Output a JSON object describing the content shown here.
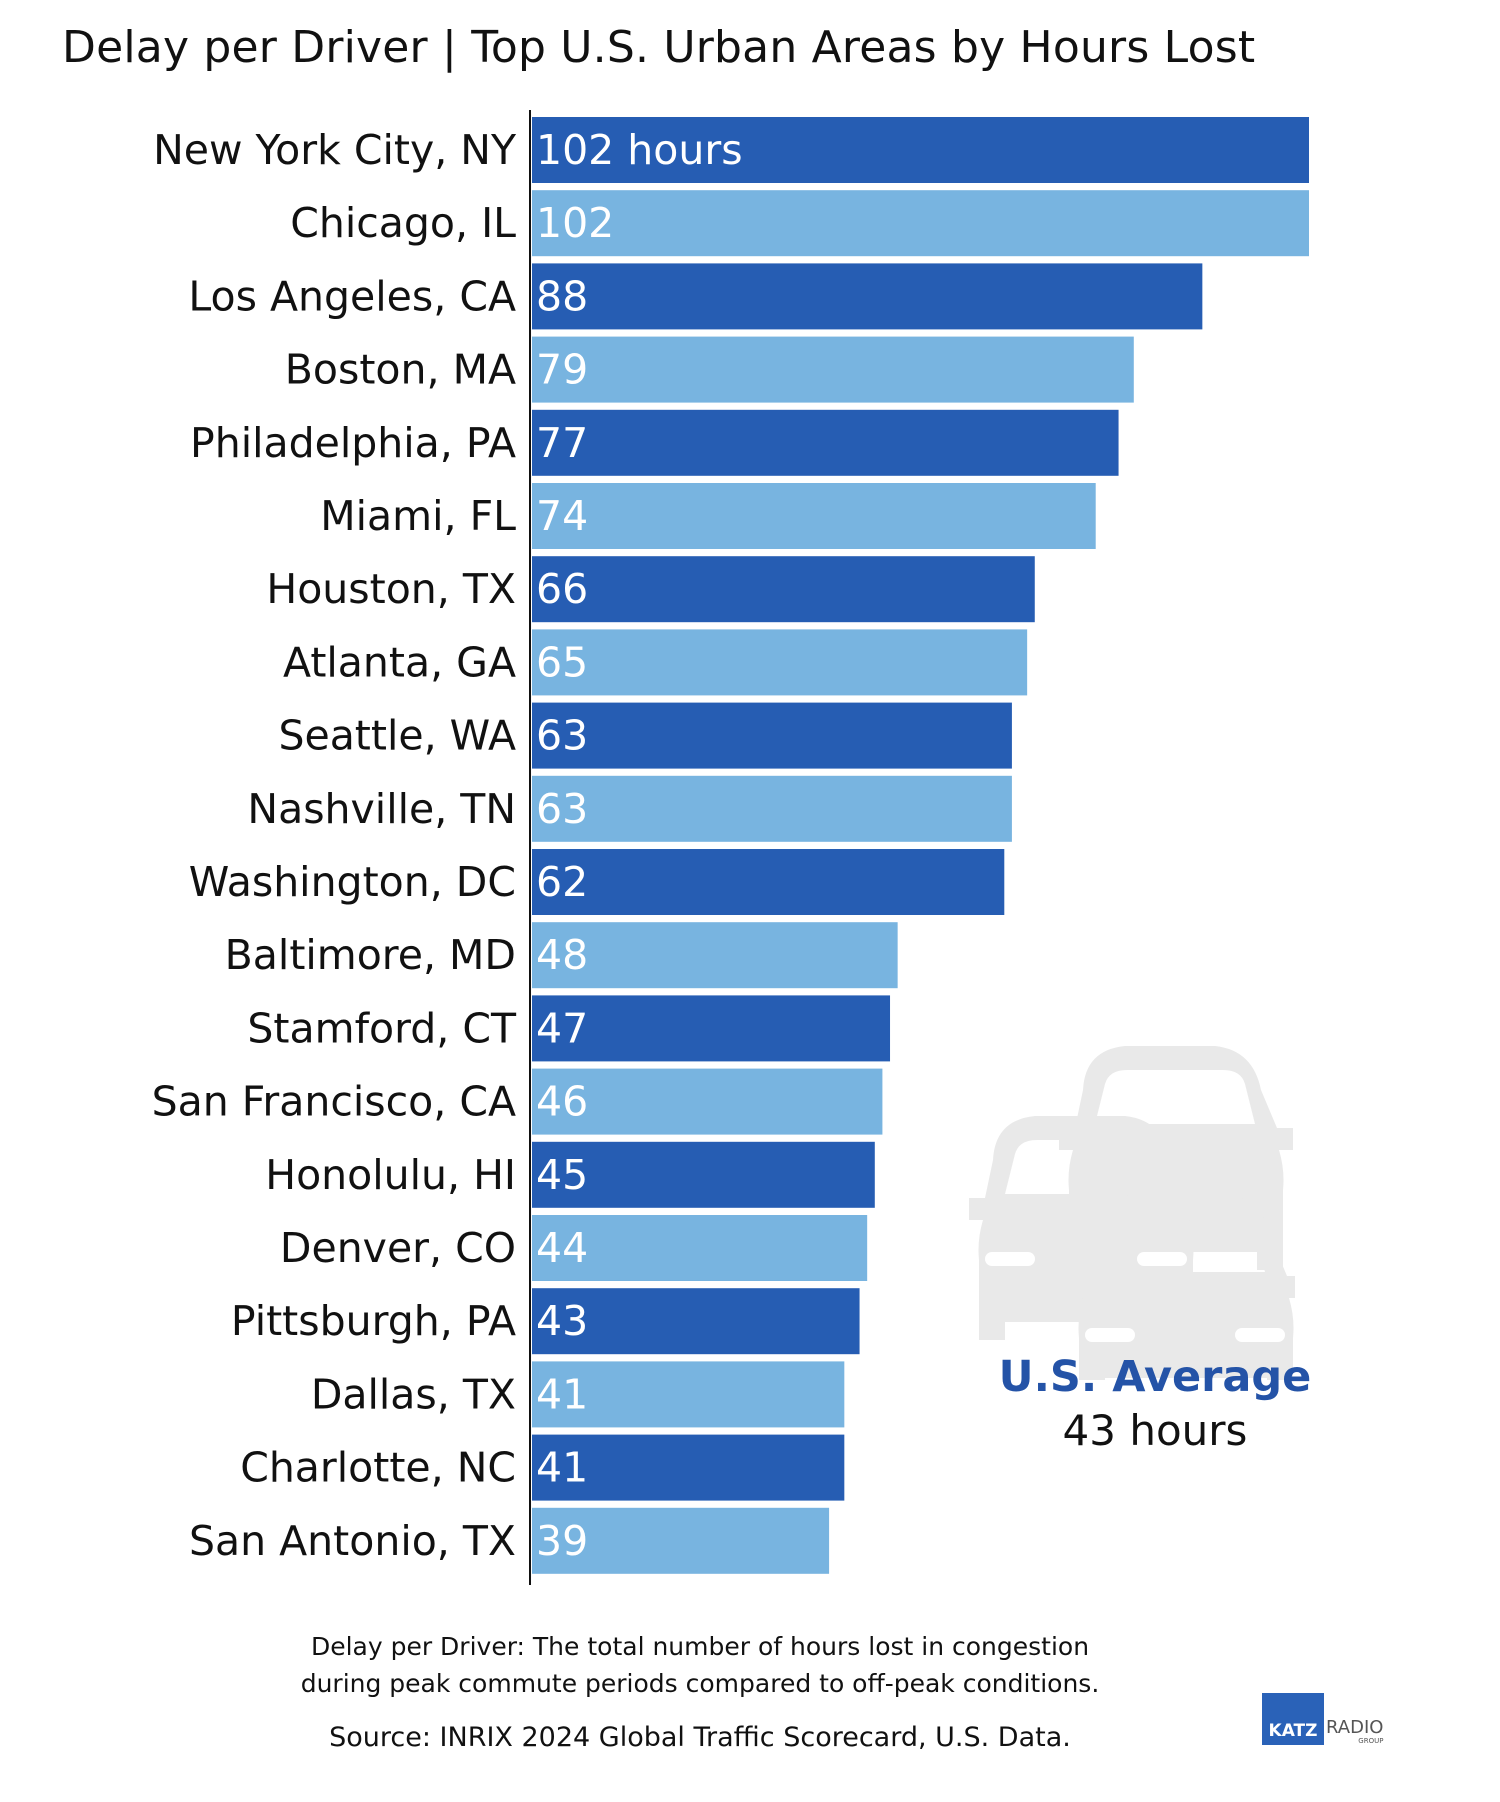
{
  "chart_data": {
    "type": "bar",
    "orientation": "horizontal",
    "title": "Delay per Driver | Top U.S. Urban Areas by Hours Lost",
    "categories": [
      "New York City, NY",
      "Chicago, IL",
      "Los Angeles, CA",
      "Boston, MA",
      "Philadelphia, PA",
      "Miami, FL",
      "Houston, TX",
      "Atlanta, GA",
      "Seattle, WA",
      "Nashville, TN",
      "Washington, DC",
      "Baltimore, MD",
      "Stamford, CT",
      "San Francisco, CA",
      "Honolulu, HI",
      "Denver, CO",
      "Pittsburgh, PA",
      "Dallas, TX",
      "Charlotte, NC",
      "San Antonio, TX"
    ],
    "values": [
      102,
      102,
      88,
      79,
      77,
      74,
      66,
      65,
      63,
      63,
      62,
      48,
      47,
      46,
      45,
      44,
      43,
      41,
      41,
      39
    ],
    "value_labels": [
      "102 hours",
      "102",
      "88",
      "79",
      "77",
      "74",
      "66",
      "65",
      "63",
      "63",
      "62",
      "48",
      "47",
      "46",
      "45",
      "44",
      "43",
      "41",
      "41",
      "39"
    ],
    "xlim": [
      0,
      102
    ],
    "grid": false,
    "bar_colors": [
      "#265db3",
      "#78b4e0"
    ]
  },
  "average": {
    "title": "U.S. Average",
    "value": "43 hours",
    "icon": "traffic-cars-icon"
  },
  "footnote": {
    "line1": "Delay per Driver: The total number of hours lost in congestion",
    "line2": "during peak commute periods compared to off-peak conditions."
  },
  "source": "Source: INRIX 2024 Global Traffic Scorecard, U.S. Data.",
  "logo": {
    "brand": "KATZ",
    "radio": "RADIO",
    "group": "GROUP"
  }
}
